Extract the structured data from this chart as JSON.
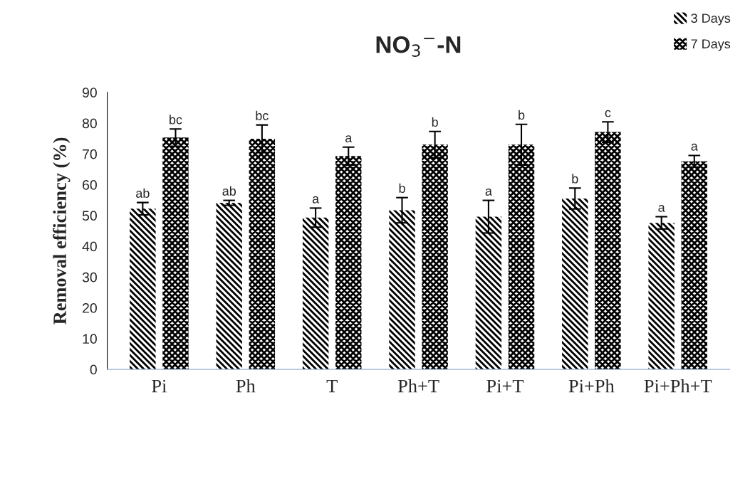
{
  "chart_data": {
    "type": "bar",
    "title": "NO$_{3}$$^{−}$-N",
    "ylabel": "Removal efficiency (%)",
    "categories": [
      "Pi",
      "Ph",
      "T",
      "Ph+T",
      "Pi+T",
      "Pi+Ph",
      "Pi+Ph+T"
    ],
    "series": [
      {
        "name": "3 Days",
        "color": "#000000",
        "values": [
          52.2,
          54.1,
          49.3,
          51.7,
          49.6,
          55.5,
          47.6
        ],
        "errors": [
          2.0,
          0.8,
          3.1,
          4.1,
          5.3,
          3.4,
          2.0
        ],
        "value_labels": [
          "ab",
          "ab",
          "a",
          "b",
          "a",
          "b",
          "a"
        ]
      },
      {
        "name": "7 Days",
        "color": "#000000",
        "values": [
          75.3,
          74.9,
          69.3,
          73.0,
          73.0,
          77.1,
          67.6
        ],
        "errors": [
          2.8,
          4.5,
          2.9,
          4.3,
          6.6,
          3.3,
          1.9
        ],
        "value_labels": [
          "bc",
          "bc",
          "a",
          "b",
          "b",
          "c",
          "a"
        ]
      }
    ],
    "ylim": [
      0,
      90
    ],
    "yticks": [
      0,
      10,
      20,
      30,
      40,
      50,
      60,
      70,
      80,
      90
    ],
    "grid": false,
    "legend": "top right"
  }
}
